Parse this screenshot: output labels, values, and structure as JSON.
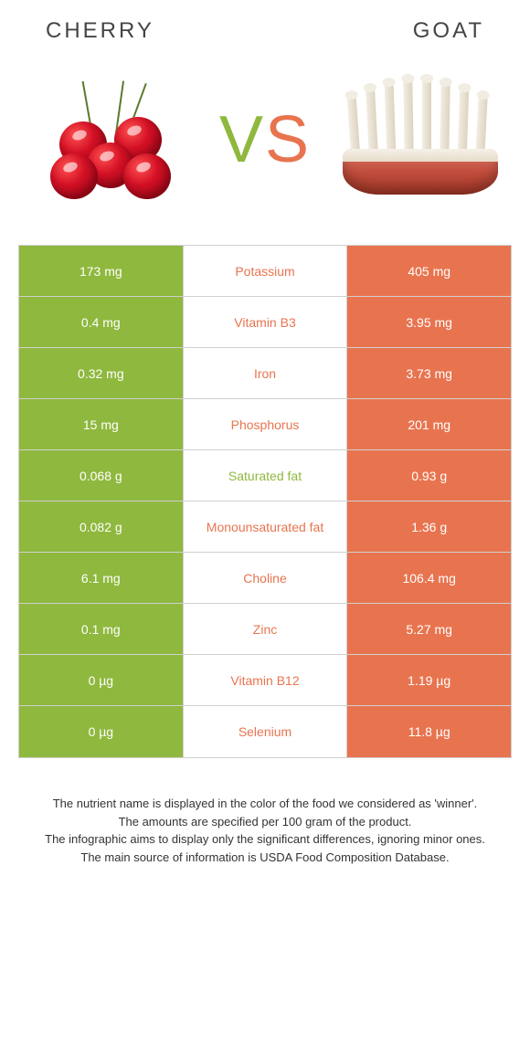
{
  "header": {
    "left": "CHERRY",
    "right": "GOAT"
  },
  "vs": {
    "v": "V",
    "s": "S"
  },
  "colors": {
    "left_bg": "#8fb83e",
    "right_bg": "#e8744f",
    "cell_text": "#ffffff",
    "border": "#d0d0d0"
  },
  "rows": [
    {
      "left": "173 mg",
      "label": "Potassium",
      "right": "405 mg",
      "winner": "right"
    },
    {
      "left": "0.4 mg",
      "label": "Vitamin B3",
      "right": "3.95 mg",
      "winner": "right"
    },
    {
      "left": "0.32 mg",
      "label": "Iron",
      "right": "3.73 mg",
      "winner": "right"
    },
    {
      "left": "15 mg",
      "label": "Phosphorus",
      "right": "201 mg",
      "winner": "right"
    },
    {
      "left": "0.068 g",
      "label": "Saturated fat",
      "right": "0.93 g",
      "winner": "left"
    },
    {
      "left": "0.082 g",
      "label": "Monounsaturated fat",
      "right": "1.36 g",
      "winner": "right"
    },
    {
      "left": "6.1 mg",
      "label": "Choline",
      "right": "106.4 mg",
      "winner": "right"
    },
    {
      "left": "0.1 mg",
      "label": "Zinc",
      "right": "5.27 mg",
      "winner": "right"
    },
    {
      "left": "0 µg",
      "label": "Vitamin B12",
      "right": "1.19 µg",
      "winner": "right"
    },
    {
      "left": "0 µg",
      "label": "Selenium",
      "right": "11.8 µg",
      "winner": "right"
    }
  ],
  "footer": {
    "line1": "The nutrient name is displayed in the color of the food we considered as 'winner'.",
    "line2": "The amounts are specified per 100 gram of the product.",
    "line3": "The infographic aims to display only the significant differences, ignoring minor ones.",
    "line4": "The main source of information is USDA Food Composition Database."
  }
}
